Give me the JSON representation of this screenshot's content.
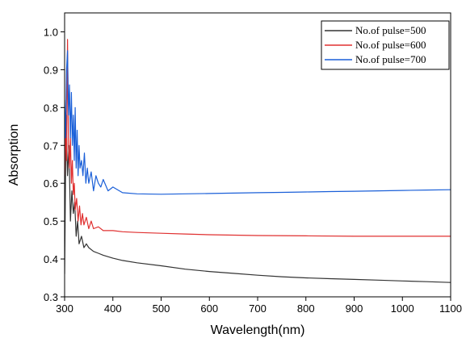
{
  "chart_data": {
    "type": "line",
    "xlabel": "Wavelength(nm)",
    "ylabel": "Absorption",
    "xlim": [
      300,
      1100
    ],
    "ylim": [
      0.3,
      1.05
    ],
    "x_ticks": [
      "300",
      "400",
      "500",
      "600",
      "700",
      "800",
      "900",
      "1000",
      "1100"
    ],
    "y_ticks": [
      "0.3",
      "0.4",
      "0.5",
      "0.6",
      "0.7",
      "0.8",
      "0.9",
      "1.0"
    ],
    "legend_position": "top-right",
    "series": [
      {
        "name": "No.of pulse=500",
        "color": "#333333",
        "x": [
          300,
          303,
          306,
          309,
          312,
          315,
          318,
          321,
          324,
          327,
          330,
          335,
          340,
          345,
          350,
          360,
          370,
          380,
          400,
          420,
          450,
          500,
          550,
          600,
          650,
          700,
          750,
          800,
          850,
          900,
          950,
          1000,
          1050,
          1100
        ],
        "y": [
          0.36,
          0.78,
          0.62,
          0.7,
          0.5,
          0.58,
          0.52,
          0.55,
          0.46,
          0.5,
          0.44,
          0.46,
          0.43,
          0.44,
          0.43,
          0.42,
          0.415,
          0.41,
          0.402,
          0.396,
          0.39,
          0.382,
          0.373,
          0.367,
          0.362,
          0.357,
          0.353,
          0.35,
          0.348,
          0.346,
          0.344,
          0.342,
          0.34,
          0.338
        ]
      },
      {
        "name": "No.of pulse=600",
        "color": "#e03030",
        "x": [
          300,
          302,
          304,
          306,
          308,
          310,
          312,
          314,
          316,
          318,
          320,
          322,
          325,
          328,
          331,
          334,
          337,
          340,
          345,
          350,
          355,
          360,
          370,
          380,
          400,
          420,
          450,
          500,
          550,
          600,
          700,
          800,
          900,
          1000,
          1100
        ],
        "y": [
          0.62,
          0.74,
          0.66,
          0.98,
          0.7,
          0.64,
          0.72,
          0.6,
          0.66,
          0.57,
          0.6,
          0.53,
          0.56,
          0.5,
          0.54,
          0.49,
          0.52,
          0.49,
          0.51,
          0.48,
          0.5,
          0.48,
          0.485,
          0.475,
          0.475,
          0.472,
          0.47,
          0.468,
          0.466,
          0.464,
          0.462,
          0.461,
          0.46,
          0.46,
          0.46
        ]
      },
      {
        "name": "No.of pulse=700",
        "color": "#1a5fd8",
        "x": [
          300,
          302,
          304,
          306,
          308,
          310,
          312,
          314,
          316,
          318,
          320,
          322,
          324,
          326,
          328,
          330,
          332,
          335,
          338,
          341,
          344,
          347,
          350,
          355,
          360,
          365,
          370,
          375,
          380,
          390,
          400,
          420,
          450,
          500,
          550,
          600,
          650,
          700,
          750,
          800,
          850,
          900,
          950,
          1000,
          1050,
          1100
        ],
        "y": [
          0.82,
          0.72,
          0.9,
          0.95,
          0.78,
          0.86,
          0.72,
          0.84,
          0.7,
          0.78,
          0.66,
          0.8,
          0.64,
          0.74,
          0.62,
          0.7,
          0.64,
          0.66,
          0.62,
          0.68,
          0.6,
          0.64,
          0.6,
          0.63,
          0.58,
          0.62,
          0.6,
          0.59,
          0.61,
          0.58,
          0.59,
          0.575,
          0.572,
          0.571,
          0.572,
          0.573,
          0.574,
          0.575,
          0.576,
          0.577,
          0.578,
          0.579,
          0.58,
          0.581,
          0.582,
          0.583
        ]
      }
    ]
  }
}
